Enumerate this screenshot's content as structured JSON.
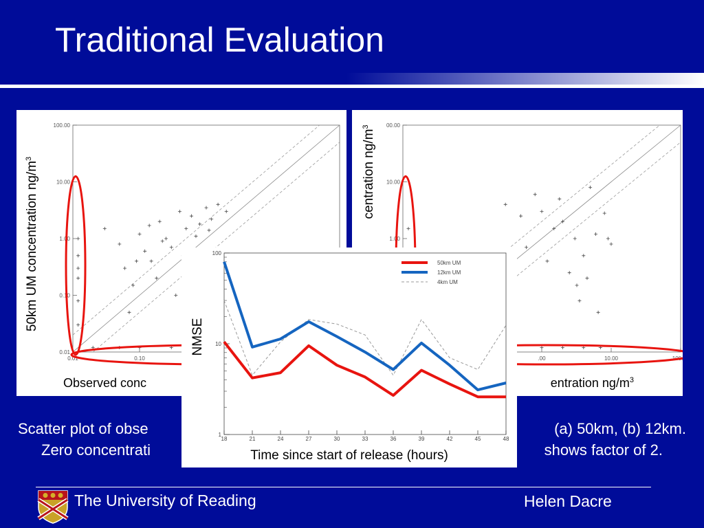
{
  "slide": {
    "title": "Traditional Evaluation",
    "caption_line1_left": "Scatter plot of obse",
    "caption_line1_right": "(a) 50km, (b) 12km.",
    "caption_line2_left": "Zero concentrati",
    "caption_line2_right": "shows factor of 2.",
    "footer_left": "The University of Reading",
    "footer_right": "Helen Dacre"
  },
  "chart_data": [
    {
      "type": "scatter",
      "ylabel": "50km UM  concentration ng/m",
      "ylabel_sup": "3",
      "xlabel_visible": "Observed conc",
      "x_scale": "log",
      "y_scale": "log",
      "x_ticks": [
        "0.01",
        "0.10"
      ],
      "y_ticks": [
        "100.00",
        "10.00",
        "1.00",
        "0.10",
        "0.01"
      ],
      "reference_lines": [
        "1:1 solid",
        "factor of 2 dashed"
      ],
      "highlight_ellipses": [
        "zero observations (left)",
        "zero model (bottom)"
      ],
      "points": [
        {
          "x": 0.012,
          "y": 0.01
        },
        {
          "x": 0.012,
          "y": 0.03
        },
        {
          "x": 0.012,
          "y": 0.08
        },
        {
          "x": 0.012,
          "y": 0.2
        },
        {
          "x": 0.012,
          "y": 0.5
        },
        {
          "x": 0.012,
          "y": 1.0
        },
        {
          "x": 0.012,
          "y": 0.3
        },
        {
          "x": 0.03,
          "y": 1.5
        },
        {
          "x": 0.05,
          "y": 0.8
        },
        {
          "x": 0.06,
          "y": 0.3
        },
        {
          "x": 0.08,
          "y": 0.15
        },
        {
          "x": 0.1,
          "y": 1.2
        },
        {
          "x": 0.12,
          "y": 0.6
        },
        {
          "x": 0.15,
          "y": 0.4
        },
        {
          "x": 0.18,
          "y": 0.2
        },
        {
          "x": 0.2,
          "y": 2.0
        },
        {
          "x": 0.25,
          "y": 1.0
        },
        {
          "x": 0.3,
          "y": 0.7
        },
        {
          "x": 0.35,
          "y": 0.1
        },
        {
          "x": 0.4,
          "y": 3.0
        },
        {
          "x": 0.5,
          "y": 1.5
        },
        {
          "x": 0.6,
          "y": 2.5
        },
        {
          "x": 0.8,
          "y": 1.8
        },
        {
          "x": 1.0,
          "y": 3.5
        },
        {
          "x": 1.2,
          "y": 2.2
        },
        {
          "x": 1.5,
          "y": 4.0
        },
        {
          "x": 2.0,
          "y": 3.0
        },
        {
          "x": 0.07,
          "y": 0.05
        },
        {
          "x": 0.09,
          "y": 0.4
        },
        {
          "x": 0.14,
          "y": 1.7
        },
        {
          "x": 0.22,
          "y": 0.9
        },
        {
          "x": 0.45,
          "y": 0.5
        },
        {
          "x": 0.7,
          "y": 1.1
        },
        {
          "x": 1.1,
          "y": 1.4
        },
        {
          "x": 0.02,
          "y": 0.012
        },
        {
          "x": 0.05,
          "y": 0.012
        },
        {
          "x": 0.1,
          "y": 0.012
        },
        {
          "x": 0.3,
          "y": 0.012
        },
        {
          "x": 1.0,
          "y": 0.012
        },
        {
          "x": 3.0,
          "y": 0.012
        }
      ]
    },
    {
      "type": "scatter",
      "ylabel": "centration ng/m",
      "ylabel_sup": "3",
      "xlabel_visible": "entration ng/m",
      "xlabel_sup": "3",
      "x_scale": "log",
      "y_scale": "log",
      "x_ticks": [
        ".00",
        "10.00",
        "100.00"
      ],
      "y_ticks": [
        "00.00",
        "10.00",
        "1.00",
        "0.10",
        "0.01"
      ],
      "highlight_ellipses": [
        "zero observations (left)",
        "zero model (bottom)"
      ],
      "points": [
        {
          "x": 0.012,
          "y": 0.01
        },
        {
          "x": 0.012,
          "y": 0.05
        },
        {
          "x": 0.012,
          "y": 0.3
        },
        {
          "x": 0.012,
          "y": 1.5
        },
        {
          "x": 0.3,
          "y": 4.0
        },
        {
          "x": 0.5,
          "y": 2.5
        },
        {
          "x": 0.8,
          "y": 6.0
        },
        {
          "x": 1.0,
          "y": 3.0
        },
        {
          "x": 1.5,
          "y": 1.5
        },
        {
          "x": 2.0,
          "y": 2.0
        },
        {
          "x": 3.0,
          "y": 1.0
        },
        {
          "x": 4.0,
          "y": 0.5
        },
        {
          "x": 5.0,
          "y": 8.0
        },
        {
          "x": 6.0,
          "y": 1.2
        },
        {
          "x": 8.0,
          "y": 2.8
        },
        {
          "x": 10.0,
          "y": 0.8
        },
        {
          "x": 1.2,
          "y": 0.4
        },
        {
          "x": 2.5,
          "y": 0.25
        },
        {
          "x": 4.5,
          "y": 0.2
        },
        {
          "x": 3.5,
          "y": 0.08
        },
        {
          "x": 6.5,
          "y": 0.05
        },
        {
          "x": 9.0,
          "y": 1.0
        },
        {
          "x": 0.6,
          "y": 0.7
        },
        {
          "x": 1.8,
          "y": 5.0
        },
        {
          "x": 3.2,
          "y": 0.15
        },
        {
          "x": 1.0,
          "y": 0.012
        },
        {
          "x": 2.0,
          "y": 0.012
        },
        {
          "x": 4.0,
          "y": 0.012
        },
        {
          "x": 7.0,
          "y": 0.012
        }
      ]
    },
    {
      "type": "line",
      "ylabel": "NMSE",
      "xlabel": "Time since start of release (hours)",
      "x": [
        18,
        21,
        24,
        27,
        30,
        33,
        36,
        39,
        42,
        45,
        48
      ],
      "x_ticks": [
        "18",
        "21",
        "24",
        "27",
        "30",
        "33",
        "36",
        "39",
        "42",
        "45",
        "48"
      ],
      "y_scale": "log",
      "y_ticks": [
        "100",
        "10",
        "1"
      ],
      "ylim": [
        1,
        100
      ],
      "series": [
        {
          "name": "50km UM",
          "color": "#e8140f",
          "values": [
            10.5,
            4.2,
            4.8,
            9.5,
            5.8,
            4.3,
            2.7,
            5.1,
            3.6,
            2.6,
            2.6
          ]
        },
        {
          "name": "12km UM",
          "color": "#1565c0",
          "values": [
            80,
            9.2,
            11.3,
            17.5,
            12.0,
            8.1,
            5.2,
            10.2,
            5.8,
            3.1,
            3.7
          ]
        },
        {
          "name": "4km UM",
          "color": "#999999",
          "dashed": true,
          "values": [
            30,
            4.5,
            10.5,
            18.5,
            16.5,
            12.5,
            4.5,
            18.5,
            7.0,
            5.2,
            16.0
          ]
        }
      ]
    }
  ]
}
